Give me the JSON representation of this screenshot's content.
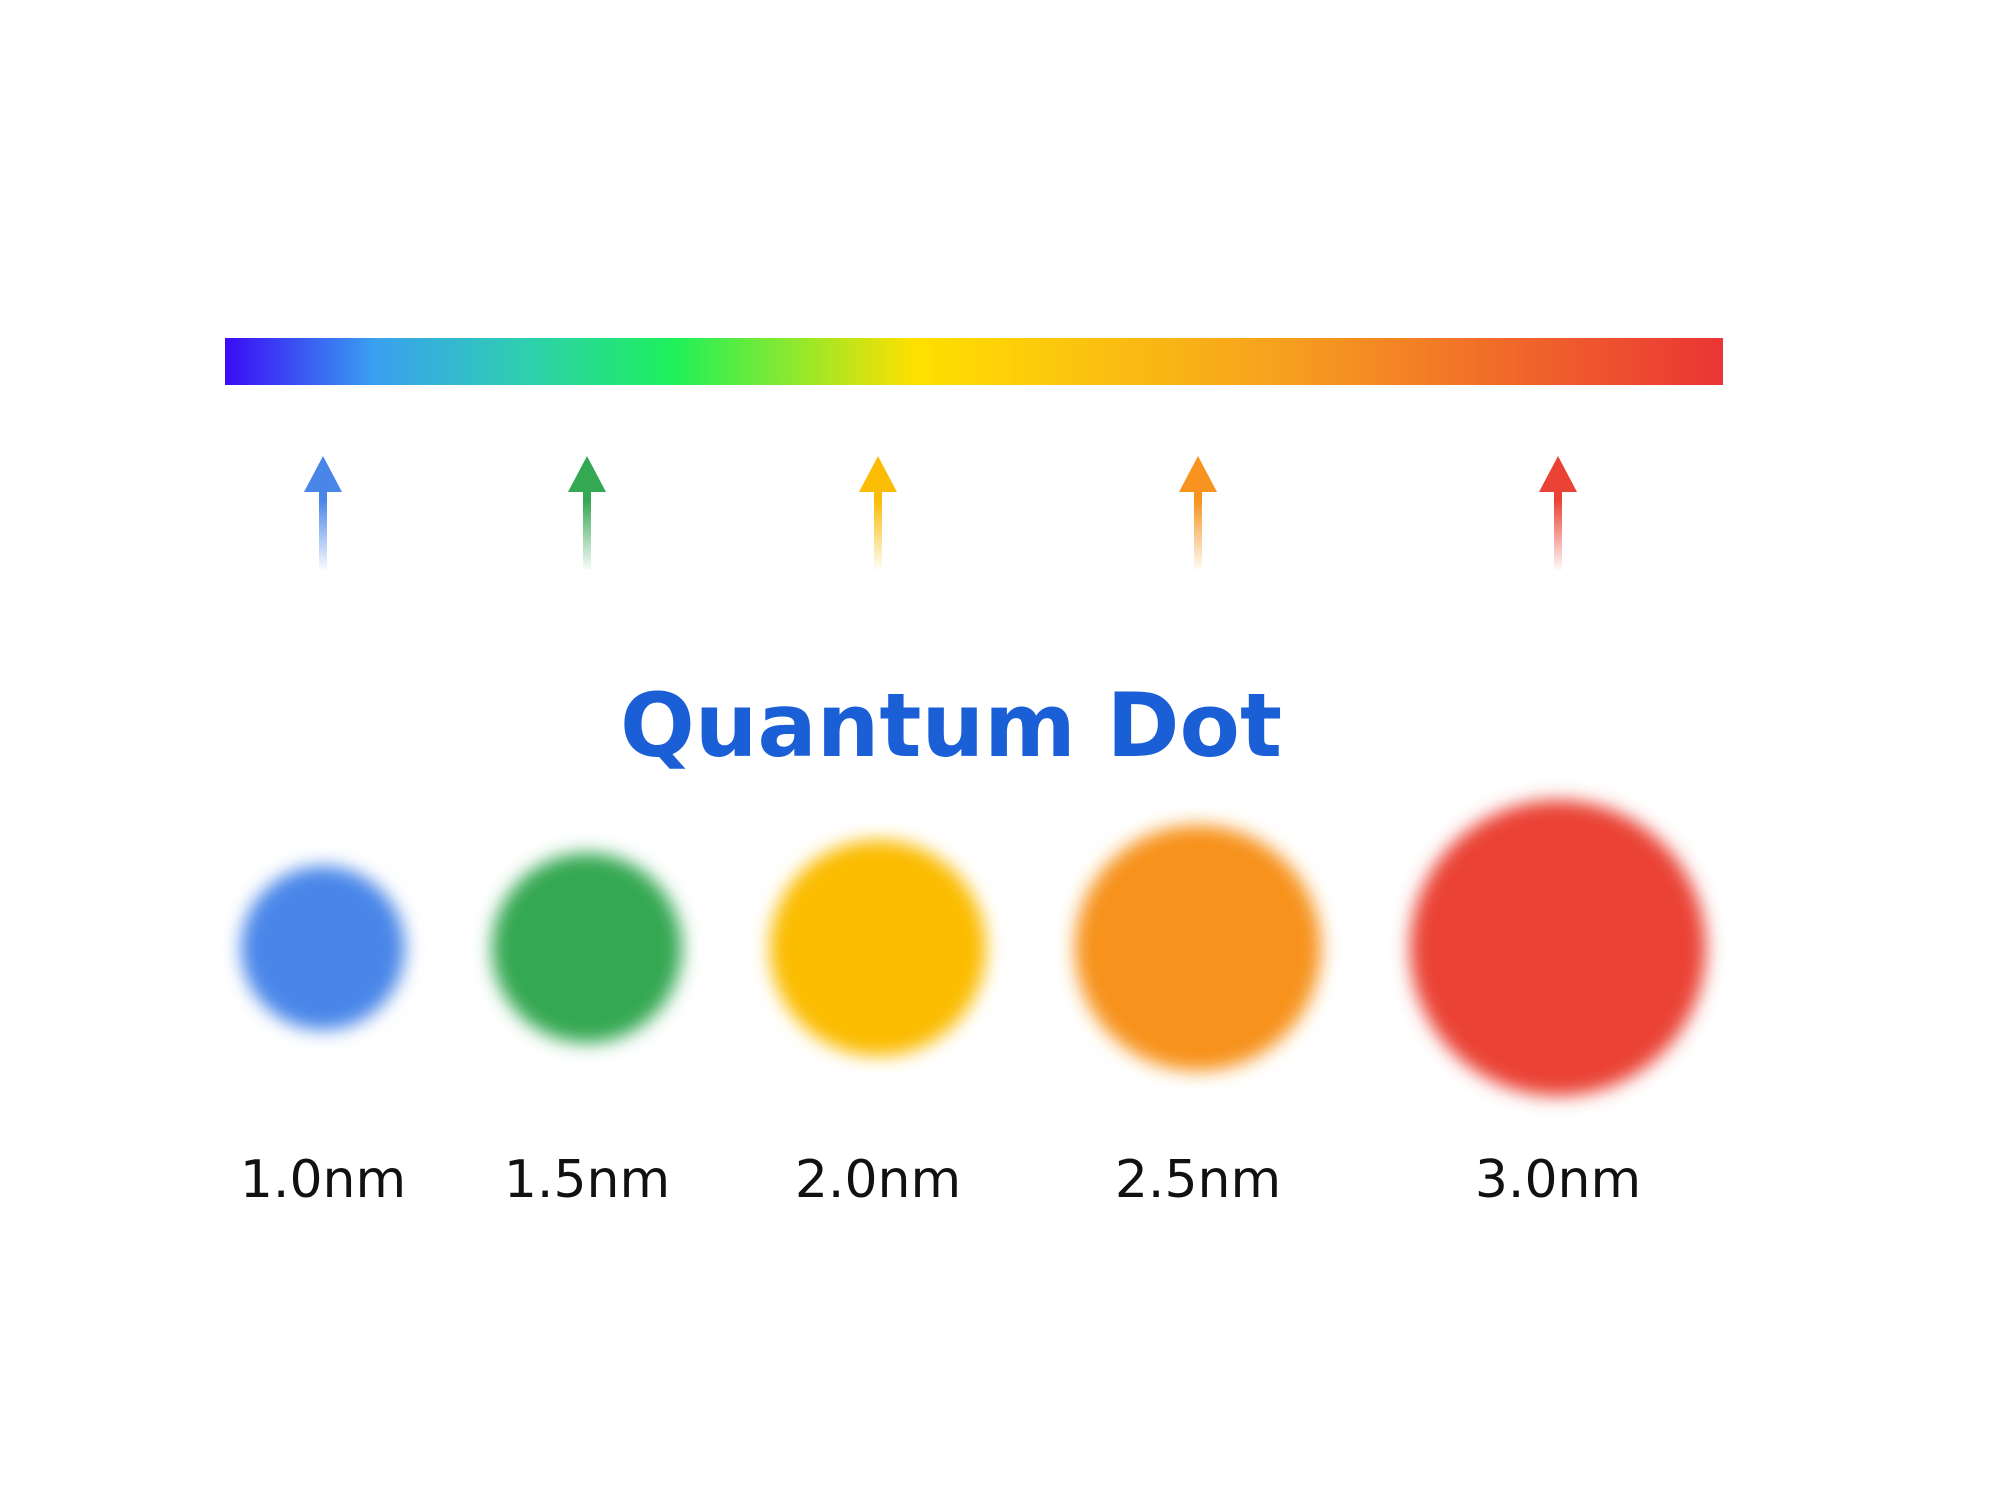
{
  "title": "Quantum Dot",
  "dots": [
    {
      "label": "1.0nm",
      "color": "#4a86e8"
    },
    {
      "label": "1.5nm",
      "color": "#34a853"
    },
    {
      "label": "2.0nm",
      "color": "#fbbc05"
    },
    {
      "label": "2.5nm",
      "color": "#f7931e"
    },
    {
      "label": "3.0nm",
      "color": "#ea4335"
    }
  ]
}
